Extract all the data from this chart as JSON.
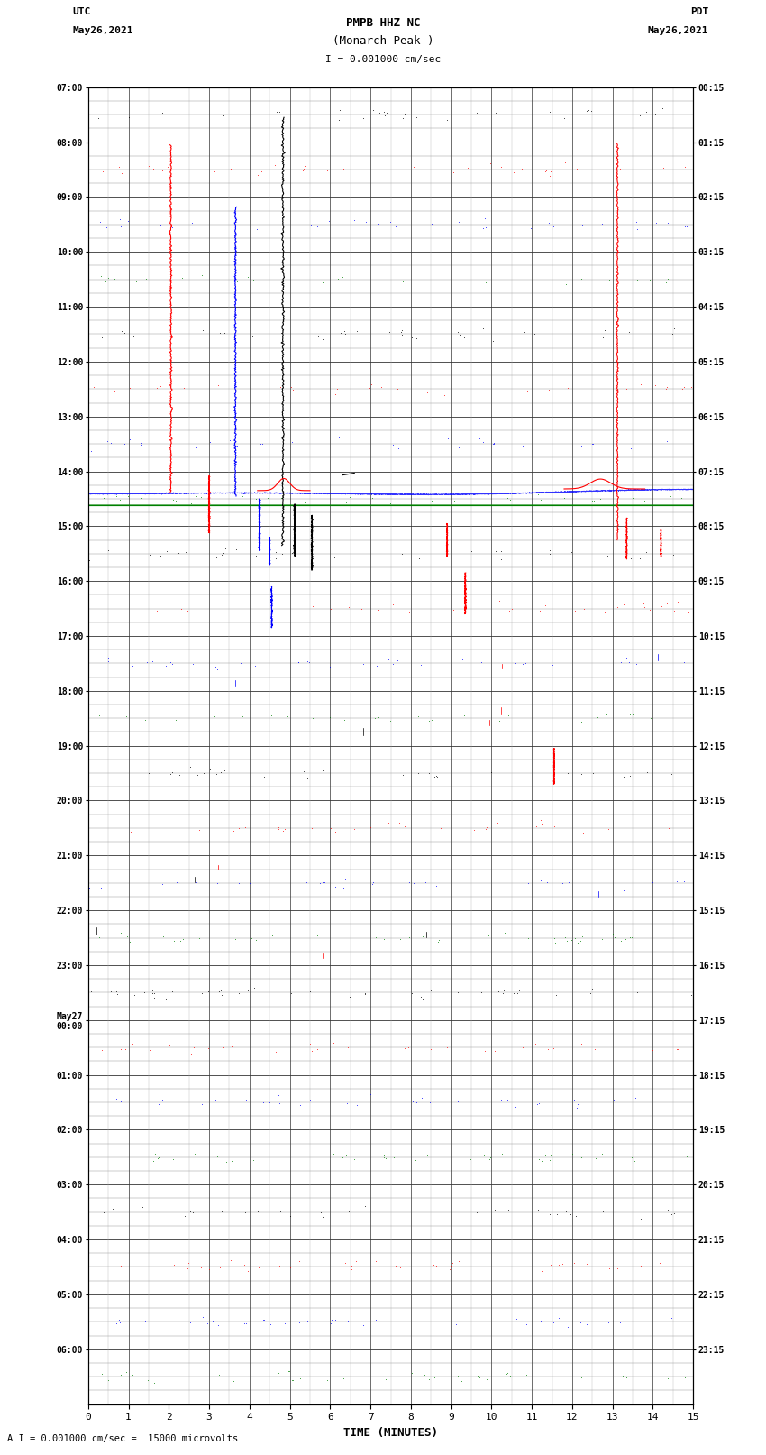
{
  "title_line1": "PMPB HHZ NC",
  "title_line2": "(Monarch Peak )",
  "title_scale": "I = 0.001000 cm/sec",
  "left_label_line1": "UTC",
  "left_label_line2": "May26,2021",
  "right_label_line1": "PDT",
  "right_label_line2": "May26,2021",
  "xlabel": "TIME (MINUTES)",
  "footer": "A I = 0.001000 cm/sec =  15000 microvolts",
  "utc_times_left": [
    "07:00",
    "08:00",
    "09:00",
    "10:00",
    "11:00",
    "12:00",
    "13:00",
    "14:00",
    "15:00",
    "16:00",
    "17:00",
    "18:00",
    "19:00",
    "20:00",
    "21:00",
    "22:00",
    "23:00",
    "May27\n00:00",
    "01:00",
    "02:00",
    "03:00",
    "04:00",
    "05:00",
    "06:00"
  ],
  "pdt_times_right": [
    "00:15",
    "01:15",
    "02:15",
    "03:15",
    "04:15",
    "05:15",
    "06:15",
    "07:15",
    "08:15",
    "09:15",
    "10:15",
    "11:15",
    "12:15",
    "13:15",
    "14:15",
    "15:15",
    "16:15",
    "17:15",
    "18:15",
    "19:15",
    "20:15",
    "21:15",
    "22:15",
    "23:15"
  ],
  "n_rows": 24,
  "n_minutes": 15,
  "bg_color": "white",
  "grid_major_color": "#555555",
  "grid_minor_color": "#aaaaaa",
  "x_ticks": [
    0,
    1,
    2,
    3,
    4,
    5,
    6,
    7,
    8,
    9,
    10,
    11,
    12,
    13,
    14,
    15
  ]
}
